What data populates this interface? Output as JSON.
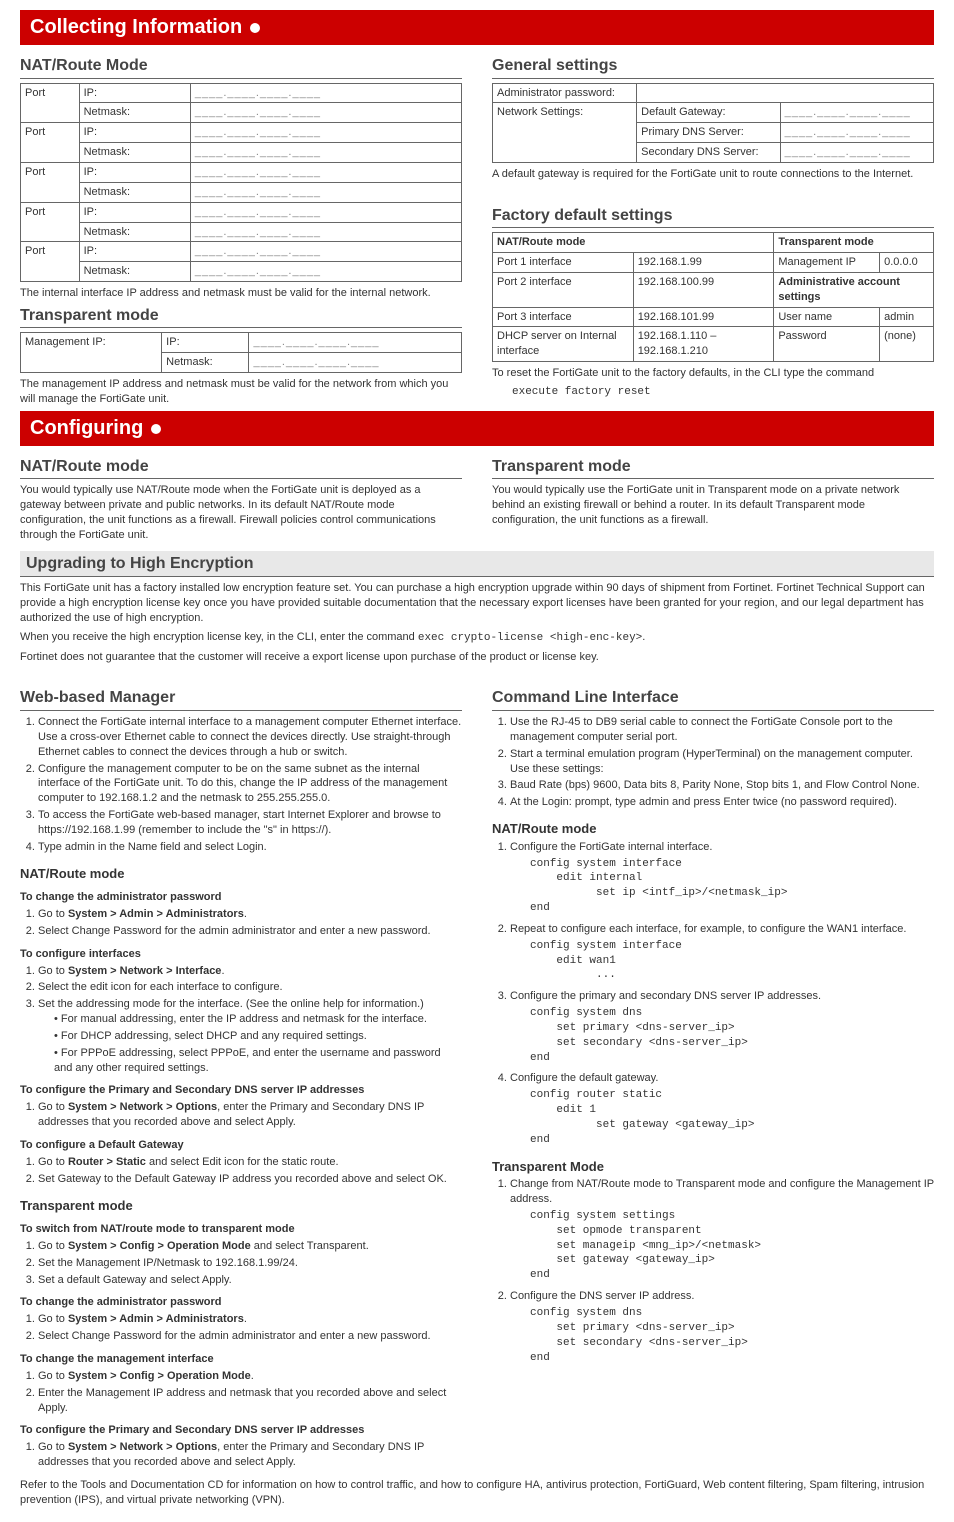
{
  "banners": {
    "collecting": "Collecting Information",
    "configuring": "Configuring"
  },
  "nat_route_mode": {
    "heading": "NAT/Route Mode",
    "rows": [
      {
        "port": "Port",
        "ip_label": "IP:",
        "ip_val": "____.____.____.____",
        "mask_label": "Netmask:",
        "mask_val": "____.____.____.____"
      },
      {
        "port": "Port",
        "ip_label": "IP:",
        "ip_val": "____.____.____.____",
        "mask_label": "Netmask:",
        "mask_val": "____.____.____.____"
      },
      {
        "port": "Port",
        "ip_label": "IP:",
        "ip_val": "____.____.____.____",
        "mask_label": "Netmask:",
        "mask_val": "____.____.____.____"
      },
      {
        "port": "Port",
        "ip_label": "IP:",
        "ip_val": "____.____.____.____",
        "mask_label": "Netmask:",
        "mask_val": "____.____.____.____"
      },
      {
        "port": "Port",
        "ip_label": "IP:",
        "ip_val": "____.____.____.____",
        "mask_label": "Netmask:",
        "mask_val": "____.____.____.____"
      }
    ],
    "note": "The internal interface IP address and netmask must be valid for the internal network."
  },
  "transparent_mode_left": {
    "heading": "Transparent mode",
    "mgmt_label": "Management IP:",
    "ip_label": "IP:",
    "ip_val": "____.____.____.____",
    "mask_label": "Netmask:",
    "mask_val": "____.____.____.____",
    "note": "The management IP address and netmask must be valid for the network from which you will manage the FortiGate unit."
  },
  "general": {
    "heading": "General settings",
    "admin_pw": "Administrator password:",
    "net_settings": "Network Settings:",
    "default_gw": "Default Gateway:",
    "gw_val": "____.____.____.____",
    "pri_dns": "Primary DNS Server:",
    "pri_val": "____.____.____.____",
    "sec_dns": "Secondary DNS Server:",
    "sec_val": "____.____.____.____",
    "note": "A default gateway is required for the FortiGate unit to route connections to the Internet."
  },
  "factory": {
    "heading": "Factory default settings",
    "nat_header": "NAT/Route mode",
    "trans_header": "Transparent mode",
    "p1": "Port 1 interface",
    "p1v": "192.168.1.99",
    "mgmt_ip": "Management IP",
    "mgmt_v": "0.0.0.0",
    "p2": "Port 2 interface",
    "p2v": "192.168.100.99",
    "admin_acct": "Administrative account settings",
    "p3": "Port 3 interface",
    "p3v": "192.168.101.99",
    "user": "User name",
    "user_v": "admin",
    "dhcp": "DHCP server on Internal interface",
    "dhcp_v": "192.168.1.110 – 192.168.1.210",
    "pw": "Password",
    "pw_v": "(none)",
    "reset_note": "To reset the FortiGate unit to the factory defaults, in the CLI type the command",
    "reset_cmd": "execute factory reset"
  },
  "config_left": {
    "heading": "NAT/Route mode",
    "body": "You would typically use NAT/Route mode when the FortiGate unit is deployed as a gateway between private and public networks. In its default NAT/Route mode configuration, the unit functions as a firewall. Firewall policies control communications through the FortiGate unit."
  },
  "config_right": {
    "heading": "Transparent mode",
    "body": "You would typically use the FortiGate unit in Transparent mode on a private network behind an existing firewall or behind a router. In its default Transparent mode configuration, the unit functions as a firewall."
  },
  "upgrade": {
    "heading": "Upgrading to High Encryption",
    "p1": "This FortiGate unit has a factory installed low encryption feature set. You can purchase a high encryption upgrade within 90 days of shipment from Fortinet. Fortinet Technical Support can provide a high encryption license key once you have provided suitable documentation that the necessary export licenses have been granted for your region, and our legal department has authorized the use of high encryption.",
    "p2a": "When you receive the high encryption license key, in the CLI, enter the command ",
    "p2b": "exec crypto-license <high-enc-key>",
    "p2c": ".",
    "p3": "Fortinet does not guarantee that the customer will receive a export license upon purchase of the product or license key."
  },
  "web": {
    "heading": "Web-based Manager",
    "s1": "Connect the FortiGate internal interface to a management computer Ethernet interface. Use a cross-over Ethernet cable to connect the devices directly. Use straight-through Ethernet cables to connect the devices through a hub or switch.",
    "s2": "Configure the management computer to be on the same subnet as the internal interface of the FortiGate unit. To do this, change the IP address of the management computer to 192.168.1.2 and the netmask to 255.255.255.0.",
    "s3": "To access the FortiGate web-based manager, start Internet Explorer and browse to https://192.168.1.99 (remember to include the \"s\" in https://).",
    "s4": "Type admin in the Name field and select Login.",
    "nat_heading": "NAT/Route mode",
    "h_admin": "To change the administrator password",
    "a1": "Go to ",
    "a1b": "System > Admin > Administrators",
    "a1c": ".",
    "a2": "Select Change Password for the admin administrator and enter a new password.",
    "h_if": "To configure interfaces",
    "i1": "Go to ",
    "i1b": "System > Network > Interface",
    "i1c": ".",
    "i2": "Select the edit icon for each interface to configure.",
    "i3": "Set the addressing mode for the interface. (See the online help for information.)",
    "i3a": "For manual addressing, enter the IP address and netmask for the interface.",
    "i3b": "For DHCP addressing, select DHCP and any required settings.",
    "i3c": "For PPPoE addressing, select PPPoE, and enter the username and password and any other required settings.",
    "h_dns": "To configure the Primary and Secondary DNS server IP addresses",
    "d1": "Go to ",
    "d1b": "System > Network > Options",
    "d1c": ", enter the Primary and Secondary DNS IP addresses that you recorded above and select Apply.",
    "h_gw": "To configure a Default Gateway",
    "g1": "Go to ",
    "g1b": "Router > Static",
    "g1c": " and select Edit icon for the static route.",
    "g2": "Set Gateway to the Default Gateway IP address you recorded above and select OK.",
    "trans_heading": "Transparent mode",
    "h_sw": "To switch from NAT/route mode to transparent mode",
    "sw1": "Go to ",
    "sw1b": "System > Config > Operation Mode",
    "sw1c": " and select Transparent.",
    "sw2": "Set the Management IP/Netmask to 192.168.1.99/24.",
    "sw3": "Set a default Gateway and select Apply.",
    "h_admin2": "To change the administrator password",
    "h_mgmt": "To change the management interface",
    "m1": "Go to ",
    "m1b": "System > Config > Operation Mode",
    "m1c": ".",
    "m2": "Enter the Management IP address and netmask that you recorded above and select Apply.",
    "h_dns2": "To configure the Primary and Secondary DNS server IP addresses"
  },
  "cli": {
    "heading": "Command Line Interface",
    "s1": "Use the RJ-45 to DB9 serial cable to connect the FortiGate Console port to the management computer serial port.",
    "s2": "Start a terminal emulation program (HyperTerminal) on the management computer. Use these settings:",
    "s3": "Baud Rate (bps) 9600, Data bits 8, Parity None, Stop bits 1, and Flow Control None.",
    "s4": "At the Login: prompt, type admin and press Enter twice (no password required).",
    "nat_heading": "NAT/Route mode",
    "c1": "Configure the FortiGate internal interface.",
    "c1_code": "config system interface\n    edit internal\n          set ip <intf_ip>/<netmask_ip>\nend",
    "c2": "Repeat to configure each interface, for example, to configure the WAN1 interface.",
    "c2_code": "config system interface\n    edit wan1\n          ...",
    "c3": "Configure the primary and secondary DNS server IP addresses.",
    "c3_code": "config system dns\n    set primary <dns-server_ip>\n    set secondary <dns-server_ip>\nend",
    "c4": "Configure the default gateway.",
    "c4_code": "config router static\n    edit 1\n          set gateway <gateway_ip>\nend",
    "trans_heading": "Transparent Mode",
    "t1": "Change from NAT/Route mode to Transparent mode and configure the Management IP address.",
    "t1_code": "config system settings\n    set opmode transparent\n    set manageip <mng_ip>/<netmask>\n    set gateway <gateway_ip>\nend",
    "t2": "Configure the DNS server IP address.",
    "t2_code": "config system dns\n    set primary <dns-server_ip>\n    set secondary <dns-server_ip>\nend"
  },
  "footer": "Refer to the Tools and Documentation CD for information on how to control traffic, and how to configure HA, antivirus protection, FortiGuard, Web content filtering, Spam filtering, intrusion prevention (IPS), and virtual private networking (VPN)."
}
